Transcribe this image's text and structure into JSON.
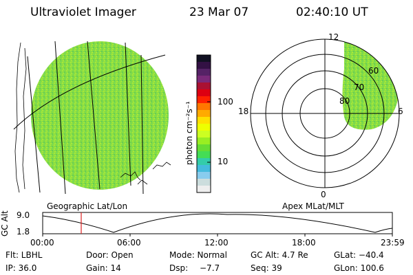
{
  "header": {
    "instrument": "Ultraviolet Imager",
    "date": "23 Mar 07",
    "time": "02:40:10 UT"
  },
  "colorbar": {
    "unit_label": "photon cm⁻²s⁻¹",
    "ticks": [
      "100",
      "10"
    ],
    "colors": [
      "#111122",
      "#331144",
      "#552266",
      "#7a2a7a",
      "#aa1133",
      "#dd0011",
      "#ff2200",
      "#ff7700",
      "#ffaa00",
      "#ffe000",
      "#eeff00",
      "#ccff22",
      "#99ee22",
      "#66dd33",
      "#44dd55",
      "#33ccaa",
      "#44bbdd",
      "#88ccee",
      "#ccdddd",
      "#eeeeee"
    ]
  },
  "polar_plot": {
    "labels": {
      "top": "12",
      "left": "18",
      "right": "6",
      "bottom": "0"
    },
    "lat_labels": [
      "60",
      "70",
      "80"
    ],
    "caption": "Apex MLat/MLT"
  },
  "globe": {
    "caption": "Geographic Lat/Lon",
    "fill_color": "#88dd44"
  },
  "altitude_plot": {
    "ylabel": "GC Alt",
    "yticks": [
      "9.0",
      "1.8"
    ],
    "xticks": [
      "00:00",
      "06:00",
      "12:00",
      "18:00",
      "23:59"
    ],
    "marker_color": "#dd2222"
  },
  "info": {
    "row1": {
      "flt": "Flt: LBHL",
      "door": "Door: Open",
      "mode": "Mode: Normal",
      "gcalt": "GC Alt: 4.7 Re",
      "glat": "GLat: −40.4"
    },
    "row2": {
      "ip": "IP: 36.0",
      "gain": "Gain: 14",
      "dsp_label": "Dsp:",
      "dsp_value": "−7.7",
      "seq": "Seq: 39",
      "glon": "GLon: 100.6"
    }
  }
}
